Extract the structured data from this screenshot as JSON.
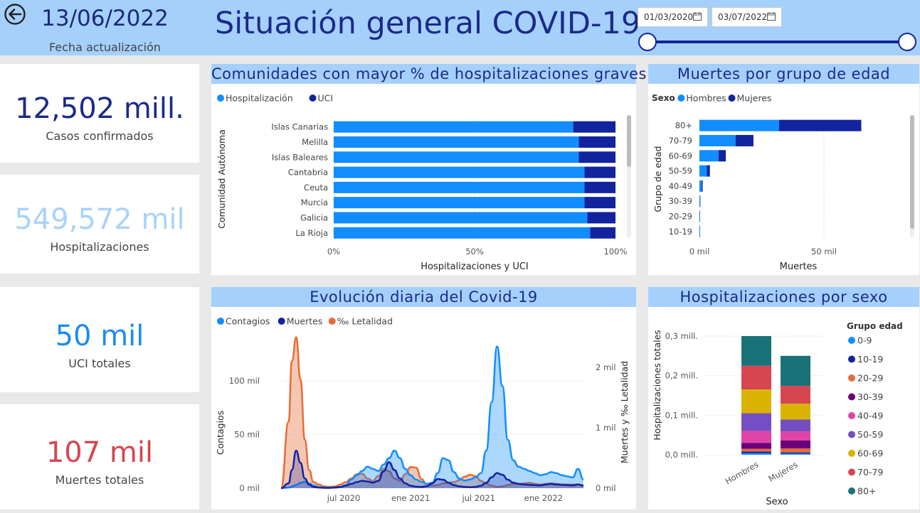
{
  "header": {
    "date": "13/06/2022",
    "date_label": "Fecha actualización",
    "title": "Situación general COVID-19",
    "date_from": "01/03/2020",
    "date_to": "03/07/2022"
  },
  "kpis": [
    {
      "value": "12,502 mill.",
      "label": "Casos confirmados",
      "color": "#1b2a8a"
    },
    {
      "value": "549,572 mil",
      "label": "Hospitalizaciones",
      "color": "#a8d2fa"
    },
    {
      "value": "50 mil",
      "label": "UCI totales",
      "color": "#1e8bf0"
    },
    {
      "value": "107 mil",
      "label": "Muertes totales",
      "color": "#d64550"
    }
  ],
  "colors": {
    "blue": "#118dff",
    "navy": "#12239e",
    "orange": "#e66c37",
    "header": "#a5d0fb"
  },
  "chart_data": [
    {
      "type": "bar",
      "title": "Comunidades con mayor % de hospitalizaciones graves",
      "xlabel": "Hospitalizaciones y UCI",
      "ylabel": "Comunidad Autónoma",
      "legend": [
        "Hospitalización",
        "UCI"
      ],
      "categories": [
        "Islas Canarias",
        "Melilla",
        "Islas Baleares",
        "Cantabria",
        "Ceuta",
        "Murcia",
        "Galicia",
        "La Rioja"
      ],
      "series": [
        {
          "name": "Hospitalización",
          "values": [
            85,
            87,
            87,
            89,
            89,
            89,
            90,
            91
          ]
        },
        {
          "name": "UCI",
          "values": [
            15,
            13,
            13,
            11,
            11,
            11,
            10,
            9
          ]
        }
      ],
      "xticks": [
        "0%",
        "50%",
        "100%"
      ],
      "xlim": [
        0,
        100
      ]
    },
    {
      "type": "bar",
      "title": "Muertes por grupo de edad",
      "xlabel": "Muertes",
      "ylabel": "Grupo de edad",
      "legend_title": "Sexo",
      "legend": [
        "Hombres",
        "Mujeres"
      ],
      "categories": [
        "80+",
        "70-79",
        "60-69",
        "50-59",
        "40-49",
        "30-39",
        "20-29",
        "10-19"
      ],
      "series": [
        {
          "name": "Hombres",
          "values": [
            32000,
            14500,
            7700,
            3000,
            900,
            250,
            80,
            30
          ]
        },
        {
          "name": "Mujeres",
          "values": [
            33000,
            7200,
            2900,
            1200,
            400,
            120,
            40,
            20
          ]
        }
      ],
      "xticks": [
        "0 mil",
        "50 mil"
      ],
      "xlim": [
        0,
        72000
      ]
    },
    {
      "type": "area",
      "title": "Evolución diaria del Covid-19",
      "legend": [
        "Contagios",
        "Muertes",
        "‰ Letalidad"
      ],
      "ylabel_left": "Contagios",
      "ylabel_right": "Muertes y ‰ Letalidad",
      "xticks": [
        "jul 2020",
        "ene 2021",
        "jul 2021",
        "ene 2022"
      ],
      "yticks_left": [
        "0 mil",
        "50 mil",
        "100 mil"
      ],
      "yticks_right": [
        "0 mil",
        "1 mil",
        "2 mil"
      ],
      "x": [
        0,
        0.7,
        1,
        1.4,
        1.8,
        2.2,
        2.6,
        3,
        3.5,
        4,
        4.5,
        5,
        5.5,
        6,
        6.5,
        7,
        7.5,
        8,
        8.5,
        9,
        9.5,
        10,
        10.5,
        11,
        11.5,
        12,
        12.5,
        13,
        13.5,
        14,
        14.5,
        15,
        15.5,
        16,
        16.5,
        17,
        17.5,
        18,
        18.5,
        19,
        19.5,
        20,
        20.5,
        21,
        21.5,
        22,
        22.5,
        23,
        23.5,
        24,
        24.5,
        25,
        25.5,
        26,
        26.5,
        27,
        27.5,
        28
      ],
      "series": [
        {
          "name": "Contagios",
          "axis": "left",
          "values": [
            0,
            0.5,
            1.5,
            3,
            5,
            6,
            4.5,
            2.5,
            1,
            0.5,
            0.5,
            0.5,
            1,
            3,
            8,
            12,
            16,
            20,
            18,
            16,
            22,
            28,
            35,
            28,
            18,
            12,
            8,
            6,
            4,
            5,
            14,
            28,
            26,
            15,
            9,
            7,
            8,
            10,
            14,
            35,
            80,
            132,
            95,
            45,
            26,
            20,
            18,
            16,
            14,
            12,
            13,
            15,
            14,
            12,
            11,
            10,
            18,
            8
          ]
        },
        {
          "name": "Muertes",
          "axis": "right",
          "values": [
            0,
            80,
            300,
            620,
            420,
            160,
            60,
            20,
            10,
            5,
            5,
            10,
            20,
            40,
            70,
            100,
            120,
            110,
            90,
            120,
            280,
            430,
            300,
            160,
            80,
            40,
            25,
            20,
            30,
            80,
            150,
            140,
            90,
            50,
            30,
            20,
            15,
            20,
            40,
            90,
            180,
            250,
            220,
            140,
            90,
            70,
            60,
            55,
            50,
            45,
            60,
            70,
            60,
            55,
            50,
            45,
            60,
            40
          ]
        },
        {
          "name": "‰ Letalidad",
          "axis": "right",
          "values": [
            0,
            1100,
            2100,
            2500,
            1800,
            800,
            300,
            100,
            60,
            30,
            20,
            30,
            60,
            100,
            160,
            230,
            240,
            160,
            120,
            200,
            320,
            280,
            160,
            120,
            230,
            350,
            340,
            150,
            60,
            40,
            50,
            80,
            90,
            100,
            130,
            190,
            220,
            200,
            120,
            70,
            40,
            20,
            30,
            50,
            70,
            70,
            80,
            90,
            70,
            60,
            70,
            80,
            70,
            60,
            60,
            60,
            60,
            50
          ]
        }
      ]
    },
    {
      "type": "bar",
      "title": "Hospitalizaciones por sexo",
      "xlabel": "Sexo",
      "ylabel": "Hospitalizaciones totales",
      "legend_title": "Grupo edad",
      "categories": [
        "Hombres",
        "Mujeres"
      ],
      "yticks": [
        "0,0 mill.",
        "0,1 mill.",
        "0,2 mill.",
        "0,3 mill."
      ],
      "ylim": [
        0,
        0.3
      ],
      "series": [
        {
          "name": "0-9",
          "color": "#118dff",
          "values": [
            0.004,
            0.003
          ]
        },
        {
          "name": "10-19",
          "color": "#12239e",
          "values": [
            0.004,
            0.003
          ]
        },
        {
          "name": "20-29",
          "color": "#e66c37",
          "values": [
            0.007,
            0.01
          ]
        },
        {
          "name": "30-39",
          "color": "#6b007b",
          "values": [
            0.015,
            0.02
          ]
        },
        {
          "name": "40-49",
          "color": "#e044a7",
          "values": [
            0.03,
            0.023
          ]
        },
        {
          "name": "50-59",
          "color": "#744ec2",
          "values": [
            0.045,
            0.03
          ]
        },
        {
          "name": "60-69",
          "color": "#d9b300",
          "values": [
            0.06,
            0.04
          ]
        },
        {
          "name": "70-79",
          "color": "#d64550",
          "values": [
            0.06,
            0.045
          ]
        },
        {
          "name": "80+",
          "color": "#197278",
          "values": [
            0.075,
            0.076
          ]
        }
      ]
    }
  ]
}
